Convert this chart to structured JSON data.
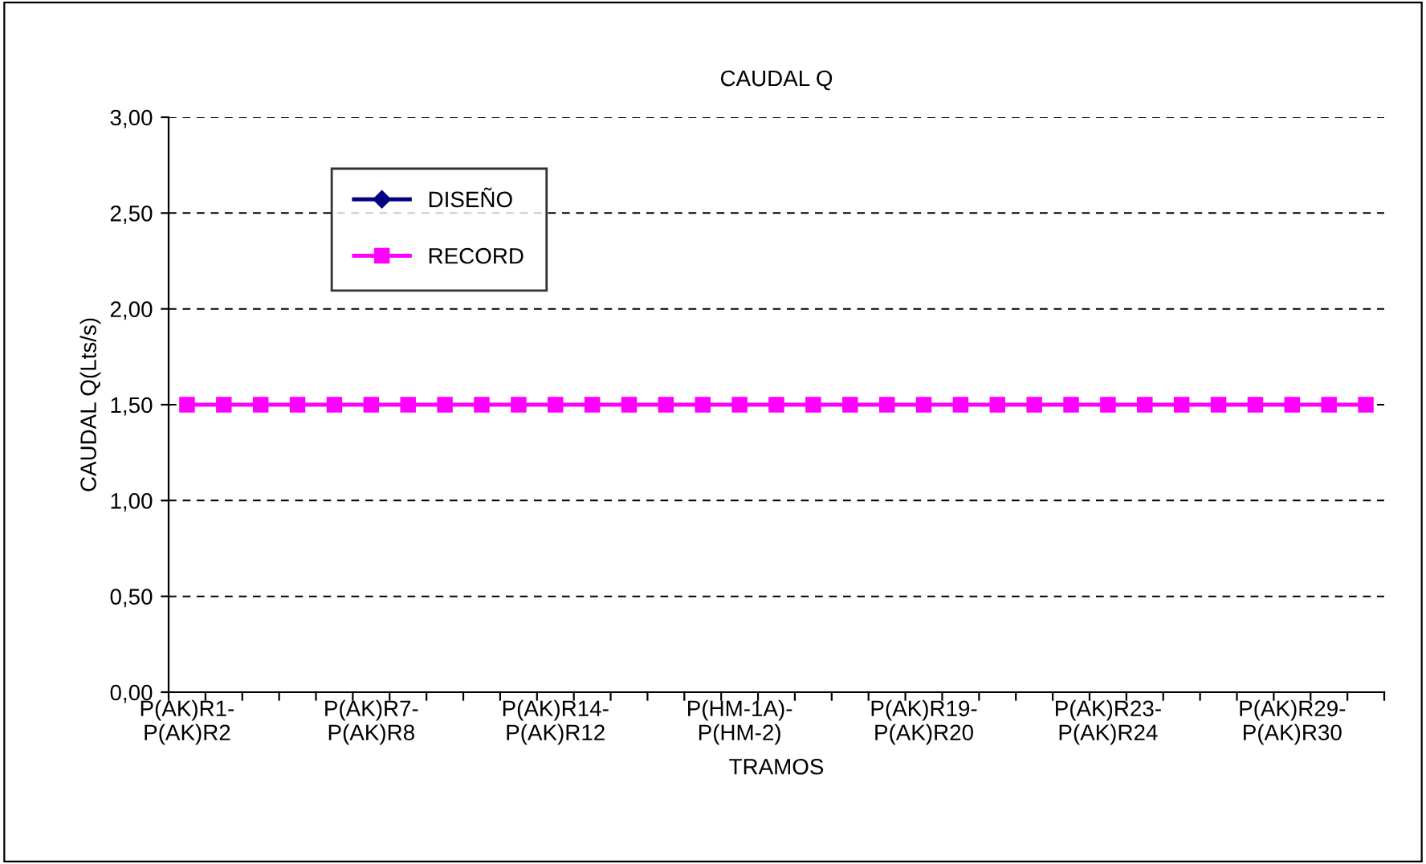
{
  "chart_data": {
    "type": "line",
    "title": "CAUDAL Q",
    "xlabel": "TRAMOS",
    "ylabel": "CAUDAL Q(Lts/s)",
    "categories": [
      "P(AK)R1-\nP(AK)R2",
      null,
      null,
      null,
      null,
      "P(AK)R7-\nP(AK)R8",
      null,
      null,
      null,
      null,
      "P(AK)R14-\nP(AK)R12",
      null,
      null,
      null,
      null,
      "P(HM-1A)-\nP(HM-2)",
      null,
      null,
      null,
      null,
      "P(AK)R19-\nP(AK)R20",
      null,
      null,
      null,
      null,
      "P(AK)R23-\nP(AK)R24",
      null,
      null,
      null,
      null,
      "P(AK)R29-\nP(AK)R30",
      null,
      null
    ],
    "series": [
      {
        "name": "DISEÑO",
        "color": "#000080",
        "marker": "diamond",
        "values": [
          null,
          null,
          null,
          null,
          null,
          null,
          null,
          null,
          null,
          null,
          null,
          null,
          null,
          null,
          null,
          null,
          null,
          null,
          null,
          null,
          null,
          null,
          null,
          null,
          null,
          null,
          null,
          null,
          null,
          null,
          null,
          null,
          null
        ]
      },
      {
        "name": "RECORD",
        "color": "#ff00ff",
        "marker": "square",
        "values": [
          1.5,
          1.5,
          1.5,
          1.5,
          1.5,
          1.5,
          1.5,
          1.5,
          1.5,
          1.5,
          1.5,
          1.5,
          1.5,
          1.5,
          1.5,
          1.5,
          1.5,
          1.5,
          1.5,
          1.5,
          1.5,
          1.5,
          1.5,
          1.5,
          1.5,
          1.5,
          1.5,
          1.5,
          1.5,
          1.5,
          1.5,
          1.5,
          1.5
        ]
      }
    ],
    "ylim": [
      0,
      3
    ],
    "yticks": [
      {
        "value": 0,
        "label": "0,00"
      },
      {
        "value": 0.5,
        "label": "0,50"
      },
      {
        "value": 1,
        "label": "1,00"
      },
      {
        "value": 1.5,
        "label": "1,50"
      },
      {
        "value": 2,
        "label": "2,00"
      },
      {
        "value": 2.5,
        "label": "2,50"
      },
      {
        "value": 3,
        "label": "3,00"
      }
    ],
    "grid": "y",
    "legend": "top left",
    "line_style": "solid"
  }
}
